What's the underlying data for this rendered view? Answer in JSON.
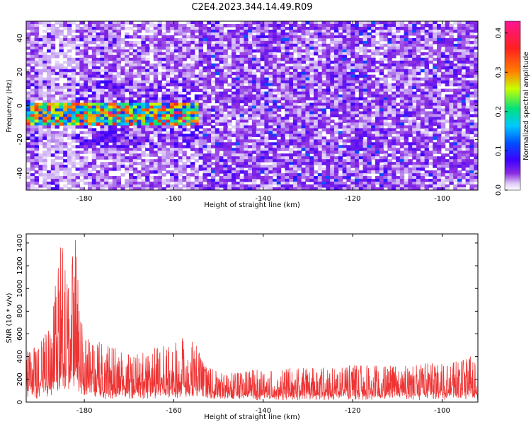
{
  "title": "C2E4.2023.344.14.49.R09",
  "chart_data": [
    {
      "type": "heatmap",
      "xlabel": "Height of straight line (km)",
      "ylabel": "Frequency (Hz)",
      "xlim": [
        -193,
        -92
      ],
      "ylim": [
        -50,
        50
      ],
      "xticks": [
        -180,
        -160,
        -140,
        -120,
        -100
      ],
      "yticks": [
        -40,
        -20,
        0,
        20,
        40
      ],
      "colorbar": {
        "label": "Normalized spectral amplitude",
        "range": [
          0.0,
          0.43
        ],
        "ticks": [
          0.0,
          0.1,
          0.2,
          0.3,
          0.4
        ],
        "colors": [
          "#ffffff",
          "#c9a8f2",
          "#8a2be2",
          "#3b00ff",
          "#0050ff",
          "#00c8ff",
          "#00e070",
          "#c8ff00",
          "#ff8000",
          "#ff2020",
          "#ff1493"
        ]
      },
      "feature": {
        "band_frequency_hz": [
          -12,
          2
        ],
        "band_height_km": [
          -193,
          -154
        ],
        "noise_floor_boundary_km": -154
      }
    },
    {
      "type": "line",
      "xlabel": "Height of straight line (km)",
      "ylabel": "SNR (10 * v/v)",
      "xlim": [
        -193,
        -92
      ],
      "ylim": [
        0,
        1480
      ],
      "xticks": [
        -180,
        -160,
        -140,
        -120,
        -100
      ],
      "yticks": [
        0,
        200,
        400,
        600,
        800,
        1000,
        1200,
        1400
      ],
      "color": "#ee3333",
      "x": [
        -193,
        -190,
        -188,
        -186,
        -185,
        -184,
        -183,
        -182,
        -181,
        -180,
        -178,
        -175,
        -170,
        -165,
        -160,
        -157,
        -155,
        -154,
        -153,
        -150,
        -145,
        -140,
        -130,
        -120,
        -110,
        -100,
        -95,
        -92
      ],
      "y_peak": [
        450,
        500,
        700,
        1150,
        1480,
        1100,
        1380,
        1440,
        850,
        600,
        580,
        520,
        420,
        470,
        520,
        600,
        550,
        420,
        320,
        270,
        280,
        300,
        310,
        330,
        320,
        360,
        420,
        430
      ],
      "y_base": [
        160,
        160,
        200,
        320,
        430,
        330,
        380,
        400,
        230,
        180,
        150,
        120,
        110,
        120,
        140,
        160,
        150,
        120,
        90,
        80,
        80,
        80,
        85,
        85,
        85,
        90,
        95,
        95
      ]
    }
  ]
}
